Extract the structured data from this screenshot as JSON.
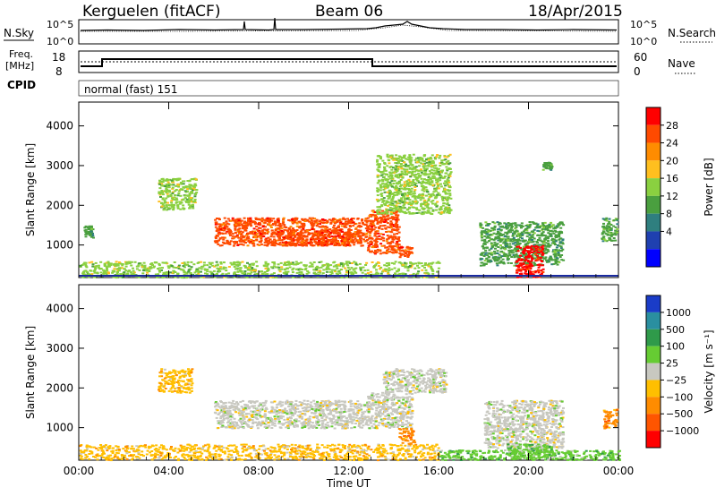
{
  "header": {
    "station": "Kerguelen (fitACF)",
    "beam": "Beam 06",
    "date": "18/Apr/2015"
  },
  "panels": {
    "nsky": {
      "left_label": "N.Sky",
      "left_ticks": [
        "10^5",
        "10^0"
      ],
      "right_ticks": [
        "10^5",
        "10^0"
      ],
      "right_label": "N.Search"
    },
    "freq": {
      "left_label_line1": "Freq.",
      "left_label_line2": "[MHz]",
      "left_ticks": [
        "18",
        "8"
      ],
      "right_ticks": [
        "60",
        "0"
      ],
      "right_label": "Nave"
    },
    "cpid": {
      "label": "CPID",
      "value": "normal (fast) 151"
    }
  },
  "chart_data": [
    {
      "type": "heatmap",
      "title": "",
      "quantity": "Power",
      "ylabel": "Slant Range [km]",
      "xlabel": "Time UT",
      "ylim": [
        180,
        4600
      ],
      "xlim": [
        "00:00",
        "24:00"
      ],
      "y_ticks": [
        1000,
        2000,
        3000,
        4000
      ],
      "x_tick_labels": [
        "00:00",
        "04:00",
        "08:00",
        "12:00",
        "16:00",
        "20:00",
        "00:00"
      ],
      "colorbar": {
        "label": "Power [dB]",
        "tick_labels": [
          "28",
          "24",
          "20",
          "16",
          "12",
          "8",
          "4"
        ],
        "colors": [
          "#ff0000",
          "#ff4a00",
          "#ff8c00",
          "#ffbf1f",
          "#8ad040",
          "#4a9f3f",
          "#2f7f7f",
          "#1f40b0",
          "#0000ff"
        ]
      },
      "regions": [
        {
          "t_start": 0.0,
          "t_end": 16.0,
          "r_min": 200,
          "r_max": 600,
          "power_db": 14
        },
        {
          "t_start": 0.2,
          "t_end": 0.6,
          "r_min": 1200,
          "r_max": 1500,
          "power_db": 10
        },
        {
          "t_start": 6.0,
          "t_end": 12.8,
          "r_min": 1000,
          "r_max": 1700,
          "power_db": 26
        },
        {
          "t_start": 8.5,
          "t_end": 12.5,
          "r_min": 1000,
          "r_max": 1400,
          "power_db": 27
        },
        {
          "t_start": 12.8,
          "t_end": 14.2,
          "r_min": 800,
          "r_max": 1900,
          "power_db": 27
        },
        {
          "t_start": 14.2,
          "t_end": 14.8,
          "r_min": 700,
          "r_max": 1000,
          "power_db": 25
        },
        {
          "t_start": 13.2,
          "t_end": 16.5,
          "r_min": 1800,
          "r_max": 3300,
          "power_db": 14
        },
        {
          "t_start": 3.5,
          "t_end": 5.2,
          "r_min": 1900,
          "r_max": 2700,
          "power_db": 14
        },
        {
          "t_start": 17.8,
          "t_end": 21.5,
          "r_min": 500,
          "r_max": 1600,
          "power_db": 12
        },
        {
          "t_start": 19.4,
          "t_end": 20.6,
          "r_min": 200,
          "r_max": 1000,
          "power_db": 29
        },
        {
          "t_start": 23.2,
          "t_end": 23.9,
          "r_min": 1100,
          "r_max": 1700,
          "power_db": 12
        },
        {
          "t_start": 20.6,
          "t_end": 21.0,
          "r_min": 2900,
          "r_max": 3100,
          "power_db": 10
        }
      ]
    },
    {
      "type": "heatmap",
      "title": "",
      "quantity": "Velocity",
      "ylabel": "Slant Range [km]",
      "xlabel": "Time UT",
      "ylim": [
        180,
        4600
      ],
      "xlim": [
        "00:00",
        "24:00"
      ],
      "y_ticks": [
        1000,
        2000,
        3000,
        4000
      ],
      "x_tick_labels": [
        "00:00",
        "04:00",
        "08:00",
        "12:00",
        "16:00",
        "20:00",
        "00:00"
      ],
      "colorbar": {
        "label": "Velocity [m s⁻¹]",
        "tick_labels": [
          "1000",
          "500",
          "100",
          "25",
          "−25",
          "−100",
          "−500",
          "−1000"
        ],
        "colors": [
          "#1a3cc8",
          "#2a8fa0",
          "#2f9a4a",
          "#66cc33",
          "#c8c8c0",
          "#ffbf00",
          "#ff8c00",
          "#ff5500",
          "#ff0000"
        ]
      },
      "regions": [
        {
          "t_start": 0.0,
          "t_end": 16.0,
          "r_min": 200,
          "r_max": 600,
          "velocity": -80
        },
        {
          "t_start": 6.0,
          "t_end": 12.8,
          "r_min": 1000,
          "r_max": 1700,
          "velocity": 0
        },
        {
          "t_start": 12.8,
          "t_end": 14.8,
          "r_min": 1000,
          "r_max": 1900,
          "velocity": 0
        },
        {
          "t_start": 14.2,
          "t_end": 14.9,
          "r_min": 600,
          "r_max": 1000,
          "velocity": -300
        },
        {
          "t_start": 13.5,
          "t_end": 16.3,
          "r_min": 1900,
          "r_max": 2500,
          "velocity": 0
        },
        {
          "t_start": 3.5,
          "t_end": 5.0,
          "r_min": 1900,
          "r_max": 2500,
          "velocity": -50
        },
        {
          "t_start": 18.0,
          "t_end": 21.5,
          "r_min": 500,
          "r_max": 1700,
          "velocity": 0
        },
        {
          "t_start": 19.0,
          "t_end": 21.0,
          "r_min": 250,
          "r_max": 600,
          "velocity": 80
        },
        {
          "t_start": 16.0,
          "t_end": 24.0,
          "r_min": 200,
          "r_max": 450,
          "velocity": 60
        },
        {
          "t_start": 23.3,
          "t_end": 23.9,
          "r_min": 1000,
          "r_max": 1500,
          "velocity": -300
        }
      ]
    }
  ]
}
